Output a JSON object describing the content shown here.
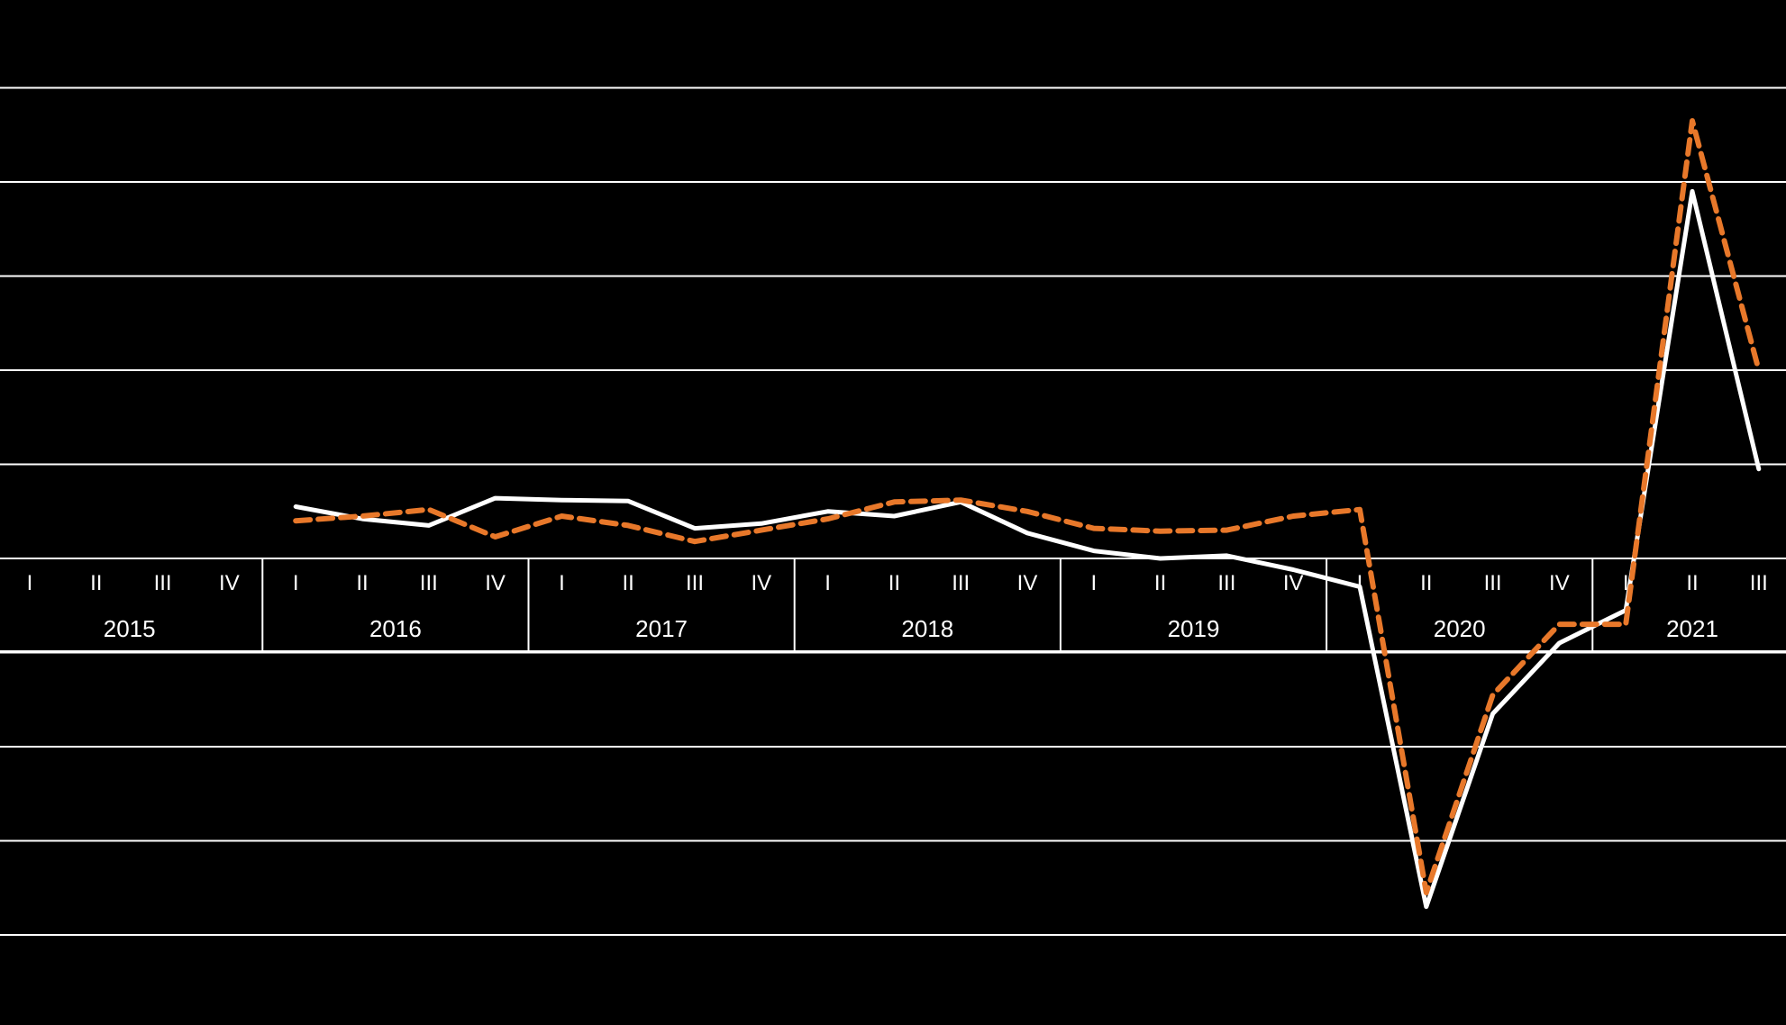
{
  "chart_data": {
    "type": "line",
    "title": "",
    "xlabel": "",
    "ylabel": "",
    "ylim": [
      -4,
      5
    ],
    "grid": true,
    "colors": {
      "background": "#000000",
      "grid": "#ffffff",
      "series_solid": "#ffffff",
      "series_dashed": "#e8782a"
    },
    "quarters": [
      "I",
      "II",
      "III",
      "IV",
      "I",
      "II",
      "III",
      "IV",
      "I",
      "II",
      "III",
      "IV",
      "I",
      "II",
      "III",
      "IV",
      "I",
      "II",
      "III",
      "IV",
      "I",
      "II",
      "III",
      "IV",
      "I",
      "II",
      "III"
    ],
    "years": [
      {
        "label": "2015",
        "start": 0,
        "end": 4
      },
      {
        "label": "2016",
        "start": 4,
        "end": 8
      },
      {
        "label": "2017",
        "start": 8,
        "end": 12
      },
      {
        "label": "2018",
        "start": 12,
        "end": 16
      },
      {
        "label": "2019",
        "start": 16,
        "end": 20
      },
      {
        "label": "2020",
        "start": 20,
        "end": 24
      },
      {
        "label": "2021",
        "start": 24,
        "end": 27
      }
    ],
    "series": [
      {
        "style": "solid",
        "values": [
          null,
          null,
          null,
          null,
          0.55,
          0.42,
          0.35,
          0.64,
          0.62,
          0.61,
          0.32,
          0.37,
          0.5,
          0.45,
          0.6,
          0.27,
          0.08,
          0.0,
          0.03,
          -0.12,
          -0.3,
          -3.7,
          -1.65,
          -0.9,
          -0.55,
          3.9,
          0.95
        ]
      },
      {
        "style": "dashed",
        "values": [
          null,
          null,
          null,
          null,
          0.4,
          0.45,
          0.52,
          0.23,
          0.45,
          0.35,
          0.18,
          0.3,
          0.42,
          0.6,
          0.62,
          0.5,
          0.32,
          0.29,
          0.3,
          0.45,
          0.52,
          -3.55,
          -1.45,
          -0.7,
          -0.7,
          4.65,
          2.0
        ]
      }
    ]
  }
}
